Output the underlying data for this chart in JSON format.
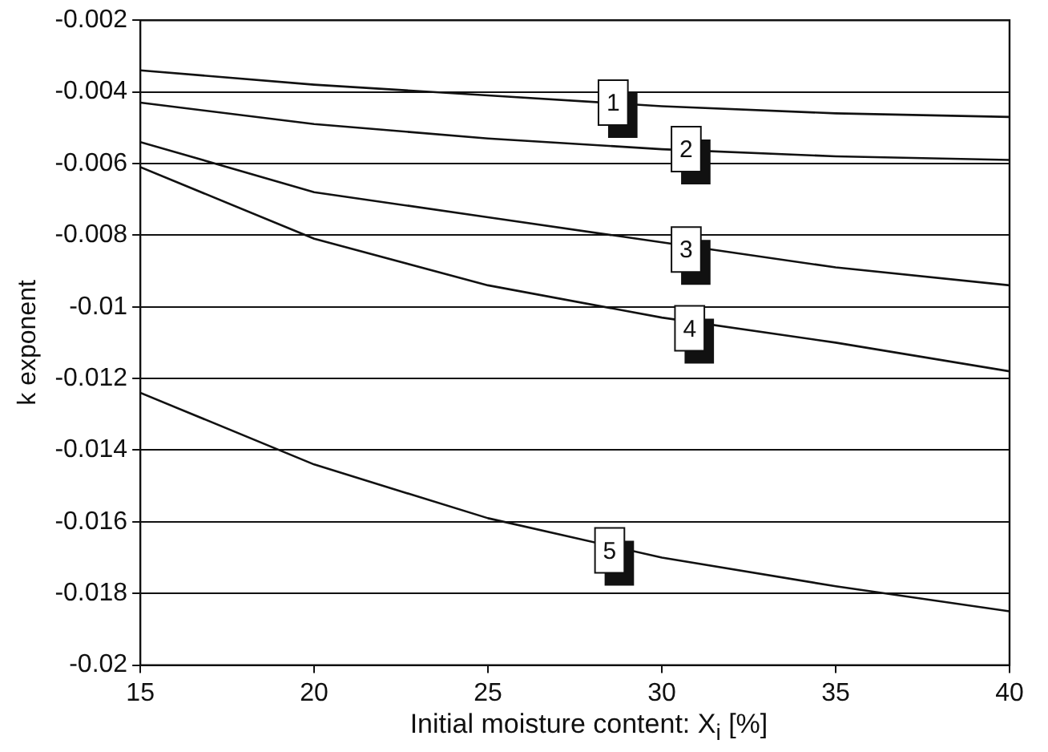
{
  "chart_data": {
    "type": "line",
    "xlabel": "Initial moisture content: X$_{i}$ [%]",
    "ylabel": "k exponent",
    "x": [
      15,
      20,
      25,
      30,
      35,
      40
    ],
    "series": [
      {
        "color": "#111111",
        "values": [
          -0.0034,
          -0.0038,
          -0.0041,
          -0.0044,
          -0.0046,
          -0.0047
        ]
      },
      {
        "color": "#111111",
        "values": [
          -0.0043,
          -0.0049,
          -0.0053,
          -0.0056,
          -0.0058,
          -0.0059
        ]
      },
      {
        "color": "#111111",
        "values": [
          -0.0054,
          -0.0068,
          -0.0075,
          -0.0082,
          -0.0089,
          -0.0094
        ]
      },
      {
        "color": "#111111",
        "values": [
          -0.0061,
          -0.0081,
          -0.0094,
          -0.0103,
          -0.011,
          -0.0118
        ]
      },
      {
        "color": "#111111",
        "values": [
          -0.0124,
          -0.0144,
          -0.0159,
          -0.017,
          -0.0178,
          -0.0185
        ]
      }
    ],
    "xlim": [
      15,
      40
    ],
    "xticks": [
      15,
      20,
      25,
      30,
      35,
      40
    ],
    "ylim": [
      -0.02,
      -0.002
    ],
    "yticks": [
      -0.02,
      -0.018,
      -0.016,
      -0.014,
      -0.012,
      -0.01,
      -0.008,
      -0.006,
      -0.004,
      -0.002
    ],
    "grid": "y",
    "marker": "none",
    "line_style": "solid",
    "legend": false,
    "annotations": [
      {
        "text": "1",
        "x": 28.6,
        "y": -0.0043
      },
      {
        "text": "2",
        "x": 30.7,
        "y": -0.0056
      },
      {
        "text": "3",
        "x": 30.7,
        "y": -0.0084
      },
      {
        "text": "4",
        "x": 30.8,
        "y": -0.0106
      },
      {
        "text": "5",
        "x": 28.5,
        "y": -0.0168
      }
    ]
  }
}
